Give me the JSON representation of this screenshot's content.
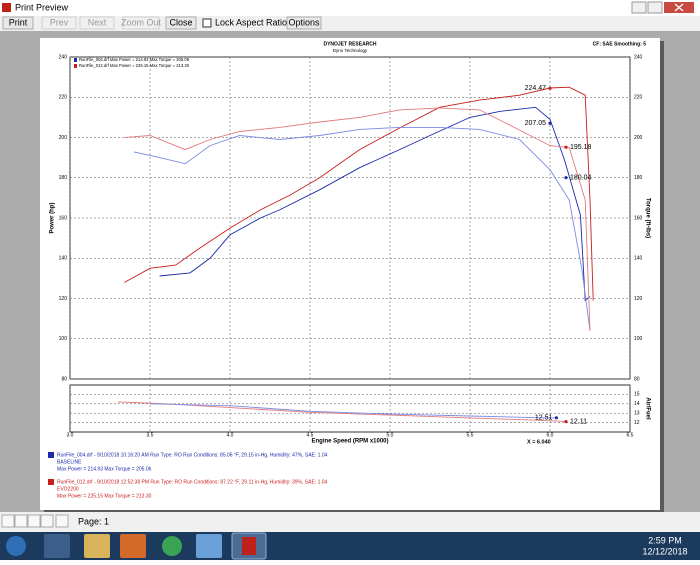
{
  "window": {
    "title": "Print Preview"
  },
  "toolbar": {
    "print": "Print",
    "prev": "Prev",
    "next": "Next",
    "zoom_out": "Zoom Out",
    "close": "Close",
    "lock_aspect": "Lock Aspect Ratio",
    "options": "Options"
  },
  "report": {
    "company": "DYNOJET RESEARCH",
    "subtitle": "Dyno Technology",
    "settings": "CF: SAE Smoothing: 5",
    "legend_top": [
      "RunFile_004.drf Max Power = 214.93   Max Torque = 205.06",
      "RunFile_012.drf Max Power = 225.15   Max Torque = 213.30"
    ],
    "cursor": "X = 6.040",
    "runs": [
      {
        "line": "RunFile_004.drf - 9/10/2018 10:16:20 AM  Run Type: RO  Run Conditions: 85.06 °F, 29.15 in-Hg,  Humidity:  47%, SAE: 1.04",
        "name": "BASELINE",
        "max": "Max Power = 214.93  Max Torque = 205.06",
        "color": "#1a2aa8"
      },
      {
        "line": "RunFile_012.drf - 9/10/2018 12:52:38 PM  Run Type: RO  Run Conditions: 87.22 °F, 29.11 in-Hg,  Humidity:  39%, SAE: 1.04",
        "name": "EVO2200",
        "max": "Max Power = 225.15  Max Torque = 213.30",
        "color": "#c81e1e"
      }
    ]
  },
  "chart_data": [
    {
      "type": "line",
      "xlabel": "Engine Speed (RPM x1000)",
      "ylabel": "Power (hp)",
      "y2label": "Torque (ft-lbs)",
      "xlim": [
        3.0,
        6.5
      ],
      "xticks": [
        {
          "value": 3.0,
          "label": "3.0"
        },
        3.5,
        {
          "value": 4.0,
          "label": "4.0"
        },
        4.5,
        {
          "value": 5.0,
          "label": "5.0"
        },
        5.5,
        {
          "value": 6.0,
          "label": "6.0"
        },
        6.5
      ],
      "ylim": [
        80,
        240
      ],
      "yticks": [
        80,
        100,
        120,
        140,
        160,
        180,
        200,
        220,
        240
      ],
      "y2lim": [
        80,
        240
      ],
      "y2ticks": [
        80,
        100,
        120,
        140,
        160,
        180,
        200,
        220,
        240
      ],
      "grid": true,
      "series": [
        {
          "color": "#1a2aa8",
          "x": [
            3.56,
            3.75,
            3.875,
            4.0,
            4.19,
            4.31,
            4.56,
            4.81,
            5.06,
            5.25,
            5.5,
            5.69,
            5.91,
            6.0,
            6.09,
            6.19,
            6.22,
            6.25
          ],
          "values": [
            131.2,
            132.7,
            140,
            151.6,
            160,
            164,
            174,
            185,
            194,
            201,
            210,
            213,
            215,
            209,
            189,
            161.5,
            119,
            121
          ]
        },
        {
          "color": "#c81e1e",
          "x": [
            3.34,
            3.5,
            3.66,
            3.81,
            4.0,
            4.19,
            4.375,
            4.56,
            4.81,
            5.06,
            5.31,
            5.56,
            5.81,
            6.0,
            6.12,
            6.22,
            6.25,
            6.27
          ],
          "values": [
            128,
            135,
            136.6,
            145,
            155,
            164,
            171.4,
            180,
            194,
            204.7,
            215,
            218.6,
            221,
            224.6,
            225,
            221,
            169,
            119
          ]
        },
        {
          "color": "#7c8ae6",
          "axis": "y2",
          "x": [
            3.4,
            3.56,
            3.72,
            3.875,
            4.06,
            4.31,
            4.56,
            4.81,
            5.06,
            5.31,
            5.56,
            5.81,
            6.0,
            6.12,
            6.2,
            6.25
          ],
          "values": [
            192.8,
            190,
            187,
            196,
            201,
            199,
            201,
            204,
            205,
            205,
            204,
            199,
            184,
            169,
            134,
            104
          ]
        },
        {
          "color": "#e27a7a",
          "axis": "y2",
          "x": [
            3.34,
            3.5,
            3.72,
            3.875,
            4.06,
            4.31,
            4.56,
            4.81,
            5.06,
            5.31,
            5.56,
            5.81,
            6.0,
            6.12,
            6.22,
            6.25
          ],
          "values": [
            200,
            201,
            194,
            199,
            203,
            205,
            207.7,
            210,
            213.7,
            214.7,
            213.7,
            203.7,
            196,
            195,
            169,
            104
          ]
        }
      ],
      "annotations": [
        {
          "x": 6.0,
          "value": 224.47,
          "color": "#c81e1e"
        },
        {
          "x": 6.0,
          "value": 207.05,
          "color": "#1a2aa8"
        },
        {
          "x": 6.1,
          "value": 195.18,
          "color": "#c81e1e"
        },
        {
          "x": 6.1,
          "value": 180.04,
          "color": "#1a2aa8"
        }
      ]
    },
    {
      "type": "line",
      "y2label": "Air/Fuel",
      "xlim": [
        3.0,
        6.5
      ],
      "ylim": [
        11,
        16
      ],
      "y2lim": [
        11,
        16
      ],
      "y2ticks": [
        12,
        13,
        14,
        15
      ],
      "grid": true,
      "series": [
        {
          "color": "#e27a7a",
          "axis": "y2",
          "x": [
            3.3,
            3.6,
            4.0,
            4.5,
            5.0,
            5.5,
            6.0,
            6.1
          ],
          "values": [
            14.2,
            14.0,
            13.6,
            13.1,
            12.8,
            12.5,
            12.2,
            12.11
          ]
        },
        {
          "color": "#7c8ae6",
          "axis": "y2",
          "x": [
            3.5,
            4.0,
            4.5,
            5.0,
            5.5,
            6.0,
            6.04
          ],
          "values": [
            14.0,
            13.8,
            13.2,
            12.9,
            12.7,
            12.5,
            12.51
          ]
        }
      ],
      "annotations": [
        {
          "x": 6.04,
          "value": 12.51,
          "color": "#1a2aa8"
        },
        {
          "x": 6.1,
          "value": 12.11,
          "color": "#c81e1e"
        }
      ]
    }
  ],
  "statusbar": {
    "page": "Page: 1"
  },
  "taskbar": {
    "time": "2:59 PM",
    "date": "12/12/2018"
  }
}
